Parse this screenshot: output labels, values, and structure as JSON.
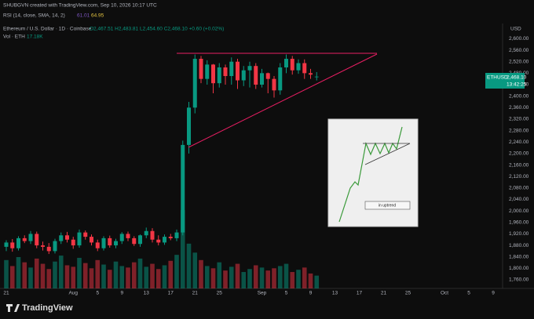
{
  "header": {
    "attribution": "SHUBGVN created with TradingView.com, Sep 10, 2026 10:17 UTC",
    "logo": "TradingView"
  },
  "chart_data": {
    "type": "candlestick",
    "indicator_legend": {
      "name": "RSI (14, close, SMA, 14, 2)",
      "rsi": 61.01,
      "rsi_ma": 64.95
    },
    "symbol_legend": "Ethereum / U.S. Dollar · 1D · Coinbase",
    "ohlc_legend": "O2,467.51 H2,483.81 L2,454.60 C2,468.10 +0.60 (+0.02%)",
    "volume_legend": {
      "name": "Vol · ETH",
      "value": "17.18K"
    },
    "price_label": {
      "symbol": "ETHUSD",
      "price": "2,468.10",
      "countdown": "13:42:25"
    },
    "annotation": "in uptrend",
    "y_unit": "USD",
    "up_color": "#089981",
    "down_color": "#f23645",
    "annotation_color": "#e91e63",
    "categories": [
      "21",
      null,
      null,
      null,
      null,
      null,
      null,
      null,
      null,
      null,
      null,
      "Aug",
      null,
      null,
      null,
      "5",
      null,
      null,
      null,
      "9",
      null,
      null,
      null,
      "13",
      null,
      null,
      null,
      "17",
      null,
      null,
      null,
      "21",
      null,
      null,
      null,
      "25",
      null,
      null,
      null,
      null,
      null,
      null,
      "Sep",
      null,
      null,
      null,
      "5",
      null,
      null,
      null,
      "9",
      null,
      null,
      null,
      "13",
      null,
      null,
      null,
      "17",
      null,
      null,
      null,
      "21",
      null,
      null,
      null,
      "25",
      null,
      null,
      null,
      null,
      null,
      "Oct",
      null,
      null,
      null,
      "5",
      null,
      null,
      null,
      "9"
    ],
    "open": [
      1875,
      1890,
      1870,
      1905,
      1895,
      1920,
      1880,
      1875,
      1860,
      1895,
      1915,
      1900,
      1880,
      1925,
      1910,
      1890,
      1870,
      1905,
      1880,
      1895,
      1920,
      1905,
      1885,
      1915,
      1930,
      1900,
      1890,
      1910,
      1905,
      1925,
      2230,
      2360,
      2530,
      2460,
      2510,
      2445,
      2500,
      2470,
      2520,
      2455,
      2490,
      2505,
      2440,
      2480,
      2460,
      2420,
      2500,
      2530,
      2490,
      2515,
      2480,
      2467.51,
      null,
      null,
      null,
      null,
      null,
      null,
      null,
      null,
      null,
      null,
      null,
      null,
      null,
      null,
      null,
      null,
      null,
      null,
      null,
      null,
      null,
      null,
      null,
      null,
      null,
      null,
      null,
      null,
      null
    ],
    "high": [
      1898,
      1902,
      1912,
      1915,
      1930,
      1928,
      1893,
      1888,
      1903,
      1925,
      1927,
      1910,
      1935,
      1932,
      1918,
      1900,
      1912,
      1914,
      1903,
      1926,
      1928,
      1912,
      1918,
      1942,
      1940,
      1915,
      1918,
      1920,
      1935,
      2245,
      2380,
      2545,
      2540,
      2525,
      2512,
      2515,
      2510,
      2535,
      2530,
      2505,
      2520,
      2515,
      2495,
      2482,
      2470,
      2515,
      2545,
      2540,
      2528,
      2528,
      2495,
      2483.81,
      null,
      null,
      null,
      null,
      null,
      null,
      null,
      null,
      null,
      null,
      null,
      null,
      null,
      null,
      null,
      null,
      null,
      null,
      null,
      null,
      null,
      null,
      null,
      null,
      null,
      null,
      null,
      null,
      null
    ],
    "low": [
      1860,
      1858,
      1862,
      1888,
      1885,
      1870,
      1862,
      1850,
      1852,
      1885,
      1890,
      1868,
      1872,
      1900,
      1880,
      1860,
      1862,
      1872,
      1870,
      1885,
      1895,
      1878,
      1875,
      1905,
      1890,
      1880,
      1882,
      1898,
      1895,
      1915,
      2200,
      2340,
      2445,
      2440,
      2410,
      2430,
      2440,
      2440,
      2425,
      2435,
      2430,
      2425,
      2430,
      2410,
      2395,
      2405,
      2480,
      2475,
      2478,
      2460,
      2460,
      2454.6,
      null,
      null,
      null,
      null,
      null,
      null,
      null,
      null,
      null,
      null,
      null,
      null,
      null,
      null,
      null,
      null,
      null,
      null,
      null,
      null,
      null,
      null,
      null,
      null,
      null,
      null,
      null,
      null,
      null
    ],
    "close": [
      1890,
      1870,
      1905,
      1895,
      1920,
      1880,
      1875,
      1860,
      1895,
      1915,
      1900,
      1880,
      1925,
      1910,
      1890,
      1870,
      1905,
      1880,
      1895,
      1920,
      1905,
      1885,
      1915,
      1930,
      1900,
      1890,
      1910,
      1905,
      1925,
      2230,
      2360,
      2530,
      2460,
      2510,
      2445,
      2500,
      2470,
      2520,
      2455,
      2490,
      2505,
      2440,
      2480,
      2460,
      2420,
      2500,
      2530,
      2490,
      2515,
      2480,
      2475,
      2468.1,
      null,
      null,
      null,
      null,
      null,
      null,
      null,
      null,
      null,
      null,
      null,
      null,
      null,
      null,
      null,
      null,
      null,
      null,
      null,
      null,
      null,
      null,
      null,
      null,
      null,
      null,
      null,
      null,
      null
    ],
    "volume": [
      38,
      30,
      42,
      35,
      28,
      40,
      33,
      26,
      36,
      44,
      31,
      29,
      41,
      34,
      27,
      38,
      32,
      25,
      36,
      30,
      28,
      35,
      40,
      29,
      33,
      26,
      31,
      37,
      45,
      105,
      60,
      48,
      38,
      30,
      27,
      35,
      24,
      29,
      33,
      22,
      26,
      31,
      28,
      24,
      27,
      30,
      33,
      22,
      25,
      28,
      20,
      17.18,
      null,
      null,
      null,
      null,
      null,
      null,
      null,
      null,
      null,
      null,
      null,
      null,
      null,
      null,
      null,
      null,
      null,
      null,
      null,
      null,
      null,
      null,
      null,
      null,
      null,
      null,
      null,
      null,
      null
    ],
    "ylim": [
      1730,
      2653
    ],
    "yticks": [
      {
        "value": 2600,
        "label": "2,600.00"
      },
      {
        "value": 2560,
        "label": "2,560.00"
      },
      {
        "value": 2520,
        "label": "2,520.00"
      },
      {
        "value": 2480,
        "label": "2,480.00"
      },
      {
        "value": 2440,
        "label": "2,440.00"
      },
      {
        "value": 2400,
        "label": "2,400.00"
      },
      {
        "value": 2360,
        "label": "2,360.00"
      },
      {
        "value": 2320,
        "label": "2,320.00"
      },
      {
        "value": 2280,
        "label": "2,280.00"
      },
      {
        "value": 2240,
        "label": "2,240.00"
      },
      {
        "value": 2200,
        "label": "2,200.00"
      },
      {
        "value": 2160,
        "label": "2,160.00"
      },
      {
        "value": 2120,
        "label": "2,120.00"
      },
      {
        "value": 2080,
        "label": "2,080.00"
      },
      {
        "value": 2040,
        "label": "2,040.00"
      },
      {
        "value": 2000,
        "label": "2,000.00"
      },
      {
        "value": 1960,
        "label": "1,960.00"
      },
      {
        "value": 1920,
        "label": "1,920.00"
      },
      {
        "value": 1880,
        "label": "1,880.00"
      },
      {
        "value": 1840,
        "label": "1,840.00"
      },
      {
        "value": 1800,
        "label": "1,800.00"
      },
      {
        "value": 1760,
        "label": "1,760.00"
      }
    ],
    "grid": false
  }
}
